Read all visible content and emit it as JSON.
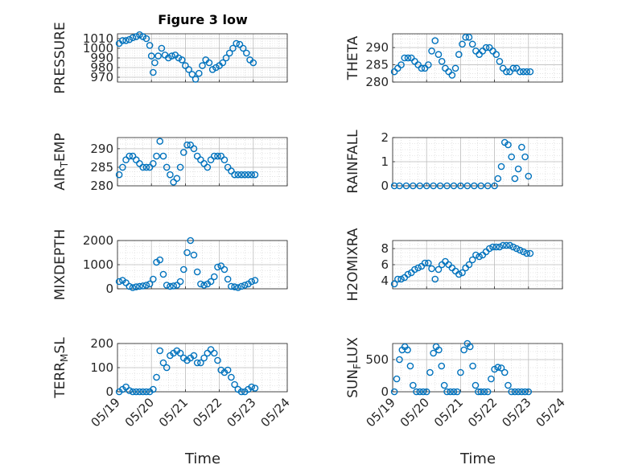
{
  "figure": {
    "title": "Figure 3 low",
    "xlabel": "Time",
    "x_ticks": [
      "05/19",
      "05/20",
      "05/21",
      "05/22",
      "05/23",
      "05/24"
    ],
    "marker_color": "#0072BD"
  },
  "chart_data": [
    {
      "type": "scatter",
      "panel": "pressure",
      "ylabel": "PRESSURE",
      "x": [
        0.05,
        0.15,
        0.25,
        0.35,
        0.45,
        0.55,
        0.65,
        0.75,
        0.85,
        0.95,
        1.0,
        1.05,
        1.1,
        1.2,
        1.3,
        1.4,
        1.5,
        1.6,
        1.7,
        1.8,
        1.9,
        2.0,
        2.1,
        2.2,
        2.3,
        2.4,
        2.5,
        2.6,
        2.7,
        2.8,
        2.9,
        3.0,
        3.1,
        3.2,
        3.3,
        3.4,
        3.5,
        3.6,
        3.7,
        3.8,
        3.9,
        4.0
      ],
      "y": [
        1005,
        1008,
        1008,
        1009,
        1011,
        1012,
        1014,
        1012,
        1010,
        1003,
        992,
        975,
        985,
        992,
        1000,
        993,
        990,
        992,
        993,
        990,
        988,
        982,
        978,
        973,
        968,
        974,
        982,
        988,
        985,
        978,
        980,
        982,
        985,
        990,
        995,
        1000,
        1005,
        1004,
        1000,
        995,
        988,
        985
      ],
      "yticks": [
        970,
        980,
        990,
        1000,
        1010
      ],
      "ylim": [
        965,
        1015
      ],
      "xlim": [
        0,
        5
      ],
      "grid": true
    },
    {
      "type": "scatter",
      "panel": "theta",
      "ylabel": "THETA",
      "x": [
        0.05,
        0.15,
        0.25,
        0.35,
        0.45,
        0.55,
        0.65,
        0.75,
        0.85,
        0.95,
        1.05,
        1.15,
        1.25,
        1.35,
        1.45,
        1.55,
        1.65,
        1.75,
        1.85,
        1.95,
        2.05,
        2.15,
        2.25,
        2.35,
        2.45,
        2.55,
        2.65,
        2.75,
        2.85,
        2.95,
        3.05,
        3.15,
        3.25,
        3.35,
        3.45,
        3.55,
        3.65,
        3.75,
        3.85,
        3.95,
        4.05
      ],
      "y": [
        283,
        284,
        285,
        287,
        287,
        287,
        286,
        285,
        284,
        284,
        285,
        289,
        292,
        288,
        286,
        284,
        283,
        282,
        284,
        288,
        291,
        293,
        293,
        291,
        289,
        288,
        289,
        290,
        290,
        289,
        288,
        286,
        284,
        283,
        283,
        284,
        284,
        283,
        283,
        283,
        283
      ],
      "yticks": [
        280,
        285,
        290
      ],
      "ylim": [
        280,
        294
      ],
      "xlim": [
        0,
        5
      ],
      "grid": true
    },
    {
      "type": "scatter",
      "panel": "air_temp",
      "ylabel": "AIR_TEMP",
      "x": [
        0.05,
        0.15,
        0.25,
        0.35,
        0.45,
        0.55,
        0.65,
        0.75,
        0.85,
        0.95,
        1.05,
        1.15,
        1.25,
        1.35,
        1.45,
        1.55,
        1.65,
        1.75,
        1.85,
        1.95,
        2.05,
        2.15,
        2.25,
        2.35,
        2.45,
        2.55,
        2.65,
        2.75,
        2.85,
        2.95,
        3.05,
        3.15,
        3.25,
        3.35,
        3.45,
        3.55,
        3.65,
        3.75,
        3.85,
        3.95,
        4.05
      ],
      "y": [
        283,
        285,
        287,
        288,
        288,
        287,
        286,
        285,
        285,
        285,
        286,
        288,
        292,
        288,
        285,
        283,
        281,
        282,
        285,
        289,
        291,
        291,
        290,
        288,
        287,
        286,
        285,
        287,
        288,
        288,
        288,
        287,
        285,
        284,
        283,
        283,
        283,
        283,
        283,
        283,
        283
      ],
      "yticks": [
        280,
        285,
        290
      ],
      "ylim": [
        280,
        293
      ],
      "xlim": [
        0,
        5
      ],
      "grid": true
    },
    {
      "type": "scatter",
      "panel": "rainfall",
      "ylabel": "RAINFALL",
      "x": [
        0.05,
        0.2,
        0.4,
        0.6,
        0.8,
        1.0,
        1.2,
        1.4,
        1.6,
        1.8,
        2.0,
        2.2,
        2.4,
        2.6,
        2.8,
        3.0,
        3.1,
        3.2,
        3.3,
        3.4,
        3.5,
        3.6,
        3.7,
        3.8,
        3.9,
        4.0
      ],
      "y": [
        0,
        0,
        0,
        0,
        0,
        0,
        0,
        0,
        0,
        0,
        0,
        0,
        0,
        0,
        0,
        0,
        0.3,
        0.8,
        1.8,
        1.7,
        1.2,
        0.3,
        0.7,
        1.6,
        1.2,
        0.4
      ],
      "yticks": [
        0,
        1,
        2
      ],
      "ylim": [
        0,
        2
      ],
      "xlim": [
        0,
        5
      ],
      "grid": true
    },
    {
      "type": "scatter",
      "panel": "mixdepth",
      "ylabel": "MIXDEPTH",
      "x": [
        0.05,
        0.15,
        0.25,
        0.35,
        0.45,
        0.55,
        0.65,
        0.75,
        0.85,
        0.95,
        1.05,
        1.15,
        1.25,
        1.35,
        1.45,
        1.55,
        1.65,
        1.75,
        1.85,
        1.95,
        2.05,
        2.15,
        2.25,
        2.35,
        2.45,
        2.55,
        2.65,
        2.75,
        2.85,
        2.95,
        3.05,
        3.15,
        3.25,
        3.35,
        3.45,
        3.55,
        3.65,
        3.75,
        3.85,
        3.95,
        4.05
      ],
      "y": [
        300,
        350,
        250,
        100,
        50,
        80,
        100,
        120,
        150,
        200,
        400,
        1100,
        1200,
        600,
        150,
        100,
        120,
        150,
        300,
        800,
        1500,
        2000,
        1400,
        700,
        200,
        150,
        200,
        300,
        500,
        900,
        950,
        800,
        400,
        100,
        80,
        50,
        100,
        150,
        200,
        300,
        350
      ],
      "yticks": [
        0,
        1000,
        2000
      ],
      "ylim": [
        0,
        2000
      ],
      "xlim": [
        0,
        5
      ],
      "grid": true
    },
    {
      "type": "scatter",
      "panel": "h2omixra",
      "ylabel": "H2OMIXRA",
      "x": [
        0.05,
        0.15,
        0.25,
        0.35,
        0.45,
        0.55,
        0.65,
        0.75,
        0.85,
        0.95,
        1.05,
        1.15,
        1.25,
        1.35,
        1.45,
        1.55,
        1.65,
        1.75,
        1.85,
        1.95,
        2.05,
        2.15,
        2.25,
        2.35,
        2.45,
        2.55,
        2.65,
        2.75,
        2.85,
        2.95,
        3.05,
        3.15,
        3.25,
        3.35,
        3.45,
        3.55,
        3.65,
        3.75,
        3.85,
        3.95,
        4.05
      ],
      "y": [
        3.6,
        4.2,
        4.2,
        4.4,
        4.8,
        5.0,
        5.4,
        5.6,
        5.8,
        6.2,
        6.2,
        5.5,
        4.2,
        5.4,
        6.0,
        6.4,
        6.0,
        5.6,
        5.2,
        4.8,
        5.0,
        5.6,
        6.0,
        6.6,
        7.2,
        7.0,
        7.2,
        7.6,
        8.0,
        8.2,
        8.2,
        8.2,
        8.4,
        8.4,
        8.4,
        8.2,
        8.0,
        7.8,
        7.6,
        7.4,
        7.4
      ],
      "yticks": [
        4,
        6,
        8
      ],
      "ylim": [
        3,
        9
      ],
      "xlim": [
        0,
        5
      ],
      "grid": true
    },
    {
      "type": "scatter",
      "panel": "terr_msl",
      "ylabel": "TERR_MSL",
      "x": [
        0.05,
        0.15,
        0.25,
        0.35,
        0.45,
        0.55,
        0.65,
        0.75,
        0.85,
        0.95,
        1.05,
        1.15,
        1.25,
        1.35,
        1.45,
        1.55,
        1.65,
        1.75,
        1.85,
        1.95,
        2.05,
        2.15,
        2.25,
        2.35,
        2.45,
        2.55,
        2.65,
        2.75,
        2.85,
        2.95,
        3.05,
        3.15,
        3.25,
        3.35,
        3.45,
        3.55,
        3.65,
        3.75,
        3.85,
        3.95,
        4.05
      ],
      "y": [
        0,
        10,
        20,
        5,
        0,
        0,
        0,
        0,
        0,
        0,
        10,
        60,
        170,
        120,
        100,
        150,
        160,
        170,
        160,
        140,
        130,
        140,
        150,
        120,
        120,
        140,
        160,
        175,
        160,
        130,
        90,
        80,
        90,
        60,
        30,
        10,
        0,
        0,
        10,
        20,
        15
      ],
      "yticks": [
        0,
        100,
        200
      ],
      "ylim": [
        0,
        200
      ],
      "xlim": [
        0,
        5
      ],
      "grid": true
    },
    {
      "type": "scatter",
      "panel": "sun_flux",
      "ylabel": "SUN_FLUX",
      "x": [
        0.05,
        0.12,
        0.2,
        0.28,
        0.36,
        0.44,
        0.52,
        0.6,
        0.7,
        0.8,
        0.9,
        1.0,
        1.1,
        1.2,
        1.28,
        1.36,
        1.44,
        1.52,
        1.6,
        1.7,
        1.8,
        1.9,
        2.0,
        2.1,
        2.2,
        2.28,
        2.36,
        2.44,
        2.52,
        2.6,
        2.7,
        2.8,
        2.9,
        3.0,
        3.1,
        3.2,
        3.3,
        3.4,
        3.5,
        3.6,
        3.7,
        3.8,
        3.9,
        4.0
      ],
      "y": [
        0,
        200,
        500,
        650,
        700,
        650,
        400,
        100,
        0,
        0,
        0,
        0,
        300,
        600,
        700,
        650,
        400,
        100,
        0,
        0,
        0,
        0,
        300,
        650,
        750,
        700,
        400,
        100,
        0,
        0,
        0,
        0,
        200,
        350,
        380,
        370,
        300,
        100,
        0,
        0,
        0,
        0,
        0,
        0
      ],
      "yticks": [
        0,
        500
      ],
      "ylim": [
        0,
        750
      ],
      "xlim": [
        0,
        5
      ],
      "grid": true
    }
  ]
}
